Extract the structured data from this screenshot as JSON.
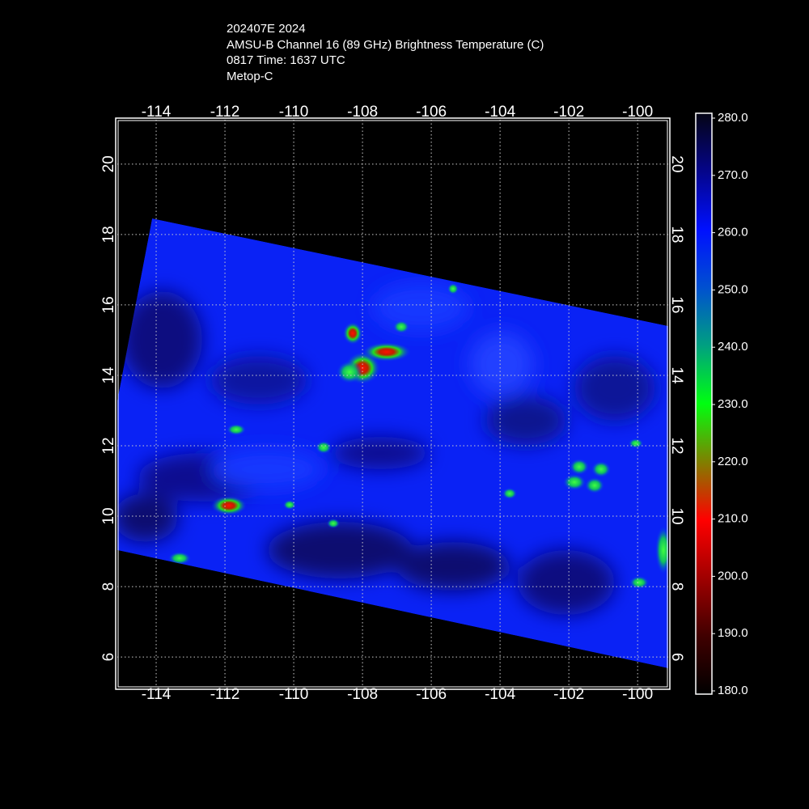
{
  "header": {
    "lines": [
      "202407E 2024",
      "AMSU-B Channel 16 (89 GHz) Brightness Temperature (C)",
      "0817 Time: 1637 UTC",
      "Metop-C"
    ]
  },
  "map": {
    "lon_range": [
      -115.13,
      -99.11
    ],
    "lat_range": [
      5.13,
      21.26
    ],
    "lon_ticks": [
      -114,
      -112,
      -110,
      -108,
      -106,
      -104,
      -102,
      -100
    ],
    "lat_ticks": [
      6,
      8,
      10,
      12,
      14,
      16,
      18,
      20
    ]
  },
  "colorbar": {
    "range": [
      180,
      280
    ],
    "ticks": [
      {
        "value": 280,
        "label": "280.0"
      },
      {
        "value": 270,
        "label": "270.0"
      },
      {
        "value": 260,
        "label": "260.0"
      },
      {
        "value": 250,
        "label": "250.0"
      },
      {
        "value": 240,
        "label": "240.0"
      },
      {
        "value": 230,
        "label": "230.0"
      },
      {
        "value": 220,
        "label": "220.0"
      },
      {
        "value": 210,
        "label": "210.0"
      },
      {
        "value": 200,
        "label": "200.0"
      },
      {
        "value": 190,
        "label": "190.0"
      },
      {
        "value": 180,
        "label": "180.0"
      }
    ]
  }
}
